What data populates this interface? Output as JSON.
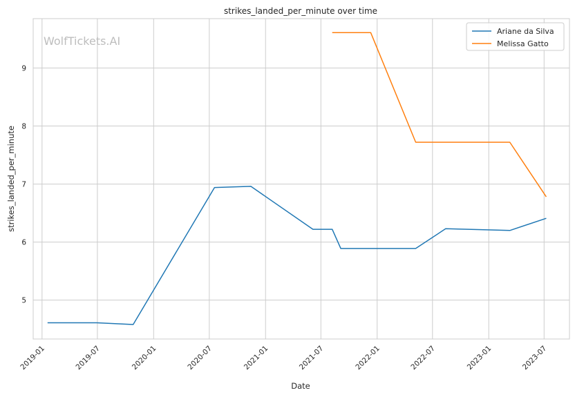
{
  "chart_data": {
    "type": "line",
    "title": "strikes_landed_per_minute over time",
    "xlabel": "Date",
    "ylabel": "strikes_landed_per_minute",
    "watermark": "WolfTickets.AI",
    "x_ticks": [
      "2019-01",
      "2019-07",
      "2020-01",
      "2020-07",
      "2021-01",
      "2021-07",
      "2022-01",
      "2022-07",
      "2023-01",
      "2023-07"
    ],
    "y_ticks": [
      5,
      6,
      7,
      8,
      9
    ],
    "xlim": [
      "2018-12-03",
      "2023-09-22"
    ],
    "ylim": [
      4.33,
      9.85
    ],
    "grid": true,
    "legend_position": "top-right",
    "series": [
      {
        "name": "Ariane da Silva",
        "color": "#1f77b4",
        "points": [
          {
            "x": "2019-01-19",
            "y": 4.61
          },
          {
            "x": "2019-06-29",
            "y": 4.61
          },
          {
            "x": "2019-10-26",
            "y": 4.58
          },
          {
            "x": "2020-07-18",
            "y": 6.94
          },
          {
            "x": "2020-11-14",
            "y": 6.96
          },
          {
            "x": "2021-06-05",
            "y": 6.22
          },
          {
            "x": "2021-08-07",
            "y": 6.22
          },
          {
            "x": "2021-09-04",
            "y": 5.89
          },
          {
            "x": "2022-05-07",
            "y": 5.89
          },
          {
            "x": "2022-08-13",
            "y": 6.23
          },
          {
            "x": "2023-03-11",
            "y": 6.2
          },
          {
            "x": "2023-07-08",
            "y": 6.41
          }
        ]
      },
      {
        "name": "Melissa Gatto",
        "color": "#ff7f0e",
        "points": [
          {
            "x": "2021-08-07",
            "y": 9.61
          },
          {
            "x": "2021-12-11",
            "y": 9.61
          },
          {
            "x": "2022-05-07",
            "y": 7.72
          },
          {
            "x": "2023-03-11",
            "y": 7.72
          },
          {
            "x": "2023-07-08",
            "y": 6.78
          }
        ]
      }
    ]
  }
}
